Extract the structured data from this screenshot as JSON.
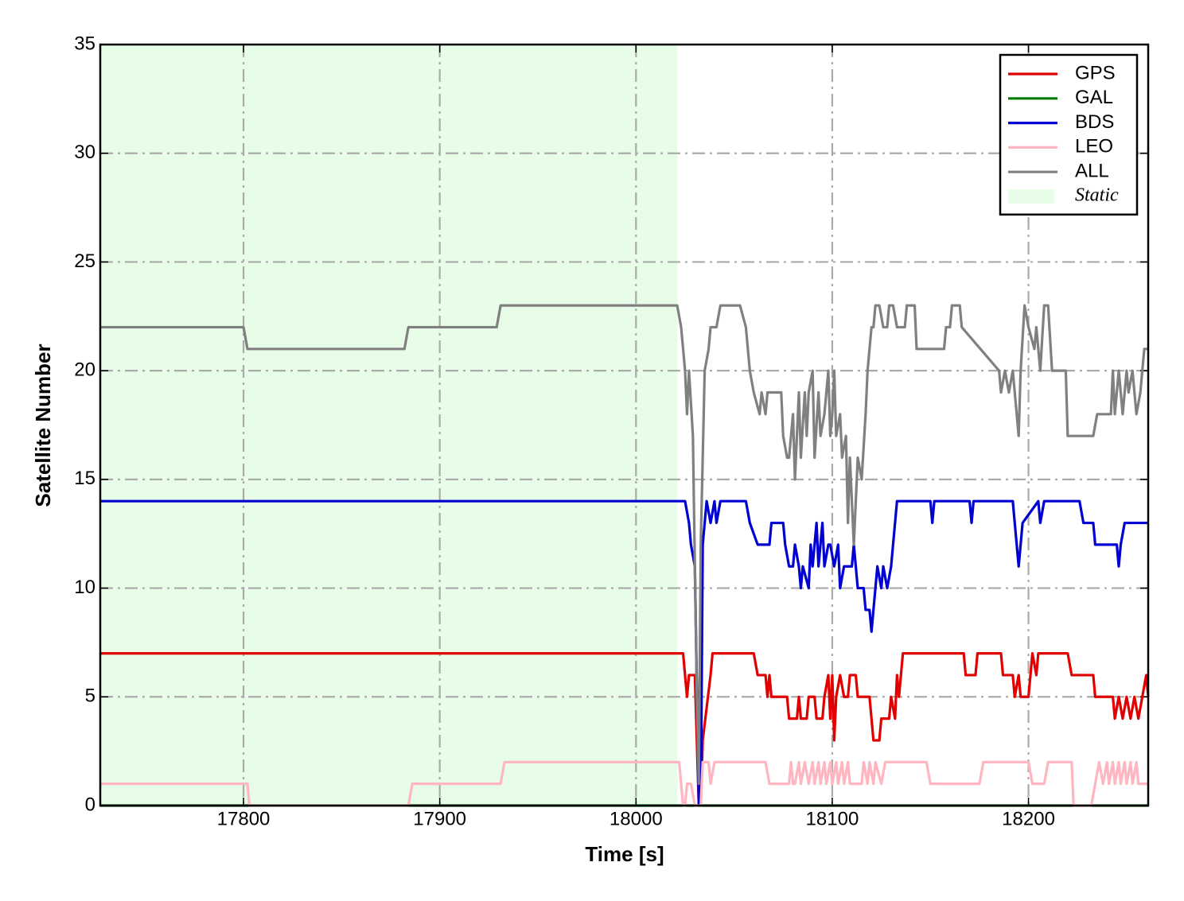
{
  "chart_data": {
    "type": "line",
    "xlabel": "Time [s]",
    "ylabel": "Satellite Number",
    "xlim": [
      17727,
      18261
    ],
    "ylim": [
      0,
      35
    ],
    "xticks": [
      17800,
      17900,
      18000,
      18100,
      18200
    ],
    "yticks": [
      0,
      5,
      10,
      15,
      20,
      25,
      30,
      35
    ],
    "grid": true,
    "legend": "upper right",
    "shaded_region": {
      "label": "Static",
      "xlim": [
        17727,
        18021
      ],
      "color": "#e8fde8"
    },
    "series": [
      {
        "name": "GPS",
        "color": "#e00000",
        "x": [
          17727,
          18024,
          18026,
          18027,
          18030,
          18032,
          18033,
          18034,
          18038,
          18039,
          18060,
          18062,
          18066,
          18067,
          18068,
          18069,
          18077,
          18078,
          18082,
          18083,
          18084,
          18087,
          18088,
          18091,
          18092,
          18095,
          18096,
          18098,
          18099,
          18100,
          18101,
          18102,
          18104,
          18106,
          18108,
          18109,
          18112,
          18113,
          18119,
          18120,
          18121,
          18124,
          18125,
          18129,
          18130,
          18132,
          18133,
          18134,
          18136,
          18167,
          18168,
          18173,
          18174,
          18186,
          18187,
          18192,
          18193,
          18195,
          18196,
          18200,
          18201,
          18202,
          18204,
          18205,
          18220,
          18222,
          18233,
          18234,
          18243,
          18244,
          18246,
          18248,
          18250,
          18252,
          18254,
          18256,
          18258,
          18260,
          18261
        ],
        "values": [
          7,
          7,
          5,
          6,
          6,
          0,
          0,
          3,
          6,
          7,
          7,
          6,
          6,
          5,
          6,
          5,
          5,
          4,
          4,
          5,
          4,
          4,
          5,
          5,
          4,
          4,
          5,
          6,
          4,
          6,
          3,
          5,
          6,
          5,
          5,
          6,
          6,
          5,
          5,
          4,
          3,
          3,
          4,
          4,
          5,
          4,
          6,
          5,
          7,
          7,
          6,
          6,
          7,
          7,
          6,
          6,
          5,
          6,
          5,
          5,
          6,
          7,
          6,
          7,
          7,
          6,
          6,
          5,
          5,
          4,
          5,
          4,
          5,
          4,
          5,
          4,
          5,
          6,
          5
        ]
      },
      {
        "name": "GAL",
        "color": "#007a00",
        "x": [
          17727,
          18261
        ],
        "values": [
          0,
          0
        ]
      },
      {
        "name": "BDS",
        "color": "#0000d0",
        "x": [
          17727,
          18025,
          18027,
          18028,
          18030,
          18032,
          18033,
          18034,
          18036,
          18038,
          18040,
          18041,
          18043,
          18056,
          18058,
          18062,
          18068,
          18069,
          18075,
          18076,
          18078,
          18080,
          18081,
          18083,
          18084,
          18085,
          18088,
          18089,
          18090,
          18092,
          18093,
          18094,
          18095,
          18096,
          18098,
          18099,
          18101,
          18103,
          18104,
          18106,
          18110,
          18111,
          18113,
          18116,
          18117,
          18119,
          18120,
          18122,
          18123,
          18125,
          18126,
          18128,
          18130,
          18133,
          18138,
          18150,
          18151,
          18152,
          18170,
          18171,
          18172,
          18192,
          18193,
          18195,
          18197,
          18205,
          18206,
          18208,
          18210,
          18226,
          18228,
          18233,
          18234,
          18245,
          18246,
          18247,
          18249,
          18261
        ],
        "values": [
          14,
          14,
          13,
          12,
          11,
          0,
          0,
          12,
          14,
          13,
          14,
          13,
          14,
          14,
          13,
          12,
          12,
          13,
          13,
          12,
          11,
          11,
          12,
          11,
          10,
          11,
          10,
          12,
          11,
          13,
          11,
          12,
          13,
          11,
          12,
          12,
          11,
          12,
          10,
          11,
          11,
          12,
          10,
          10,
          9,
          9,
          8,
          10,
          11,
          10,
          11,
          10,
          11,
          14,
          14,
          14,
          13,
          14,
          14,
          13,
          14,
          14,
          13,
          11,
          13,
          14,
          13,
          14,
          14,
          14,
          13,
          13,
          12,
          12,
          11,
          12,
          13,
          13
        ]
      },
      {
        "name": "LEO",
        "color": "#ffb6c1",
        "x": [
          17727,
          17802,
          17803,
          17884,
          17886,
          17931,
          17933,
          18022,
          18024,
          18025,
          18026,
          18028,
          18030,
          18032,
          18033,
          18034,
          18037,
          18038,
          18040,
          18066,
          18068,
          18078,
          18079,
          18080,
          18081,
          18083,
          18084,
          18086,
          18088,
          18090,
          18091,
          18093,
          18094,
          18096,
          18097,
          18099,
          18100,
          18102,
          18103,
          18105,
          18106,
          18108,
          18109,
          18115,
          18116,
          18118,
          18119,
          18121,
          18122,
          18125,
          18127,
          18148,
          18150,
          18175,
          18177,
          18200,
          18202,
          18208,
          18210,
          18222,
          18223,
          18232,
          18234,
          18236,
          18238,
          18240,
          18241,
          18243,
          18244,
          18246,
          18247,
          18249,
          18250,
          18252,
          18253,
          18255,
          18256,
          18261
        ],
        "values": [
          1,
          1,
          0,
          0,
          1,
          1,
          2,
          2,
          0,
          0,
          1,
          1,
          0,
          0,
          0,
          2,
          2,
          1,
          2,
          2,
          1,
          1,
          2,
          1,
          1,
          2,
          1,
          2,
          1,
          2,
          1,
          2,
          1,
          2,
          1,
          2,
          1,
          2,
          1,
          2,
          1,
          2,
          1,
          1,
          2,
          1,
          2,
          1,
          2,
          1,
          2,
          2,
          1,
          1,
          2,
          2,
          1,
          1,
          2,
          2,
          0,
          0,
          1,
          2,
          1,
          2,
          1,
          2,
          1,
          2,
          1,
          2,
          1,
          2,
          1,
          2,
          1,
          1
        ]
      },
      {
        "name": "ALL",
        "color": "#808080",
        "x": [
          17727,
          17800,
          17802,
          17882,
          17884,
          17929,
          17931,
          18021,
          18023,
          18025,
          18026,
          18027,
          18029,
          18031,
          18032,
          18033,
          18035,
          18037,
          18038,
          18041,
          18043,
          18053,
          18056,
          18058,
          18060,
          18063,
          18064,
          18066,
          18067,
          18068,
          18074,
          18075,
          18077,
          18078,
          18080,
          18081,
          18082,
          18083,
          18084,
          18086,
          18087,
          18088,
          18090,
          18091,
          18093,
          18094,
          18096,
          18098,
          18099,
          18100,
          18101,
          18102,
          18104,
          18105,
          18107,
          18108,
          18109,
          18111,
          18113,
          18115,
          18117,
          18118,
          18120,
          18121,
          18122,
          18124,
          18126,
          18128,
          18129,
          18131,
          18133,
          18137,
          18138,
          18142,
          18143,
          18157,
          18158,
          18160,
          18161,
          18165,
          18166,
          18185,
          18186,
          18188,
          18190,
          18192,
          18195,
          18196,
          18198,
          18200,
          18203,
          18204,
          18206,
          18208,
          18210,
          18212,
          18219,
          18220,
          18233,
          18235,
          18242,
          18243,
          18244,
          18246,
          18247,
          18248,
          18250,
          18251,
          18253,
          18255,
          18257,
          18259,
          18261
        ],
        "values": [
          22,
          22,
          21,
          21,
          22,
          22,
          23,
          23,
          22,
          20,
          18,
          20,
          17,
          5,
          1,
          12,
          20,
          21,
          22,
          22,
          23,
          23,
          22,
          20,
          19,
          18,
          19,
          18,
          19,
          19,
          19,
          17,
          16,
          16,
          18,
          15,
          17,
          19,
          16,
          19,
          17,
          19,
          20,
          16,
          19,
          17,
          18,
          20,
          17,
          18,
          20,
          17,
          18,
          16,
          17,
          13,
          16,
          12,
          16,
          15,
          18,
          20,
          22,
          22,
          23,
          23,
          22,
          22,
          23,
          23,
          22,
          22,
          23,
          23,
          21,
          21,
          22,
          22,
          23,
          23,
          22,
          20,
          19,
          20,
          19,
          20,
          17,
          20,
          23,
          22,
          21,
          22,
          20,
          23,
          23,
          20,
          20,
          17,
          17,
          18,
          18,
          20,
          18,
          20,
          19,
          18,
          20,
          19,
          20,
          18,
          19,
          21,
          21
        ]
      }
    ]
  }
}
